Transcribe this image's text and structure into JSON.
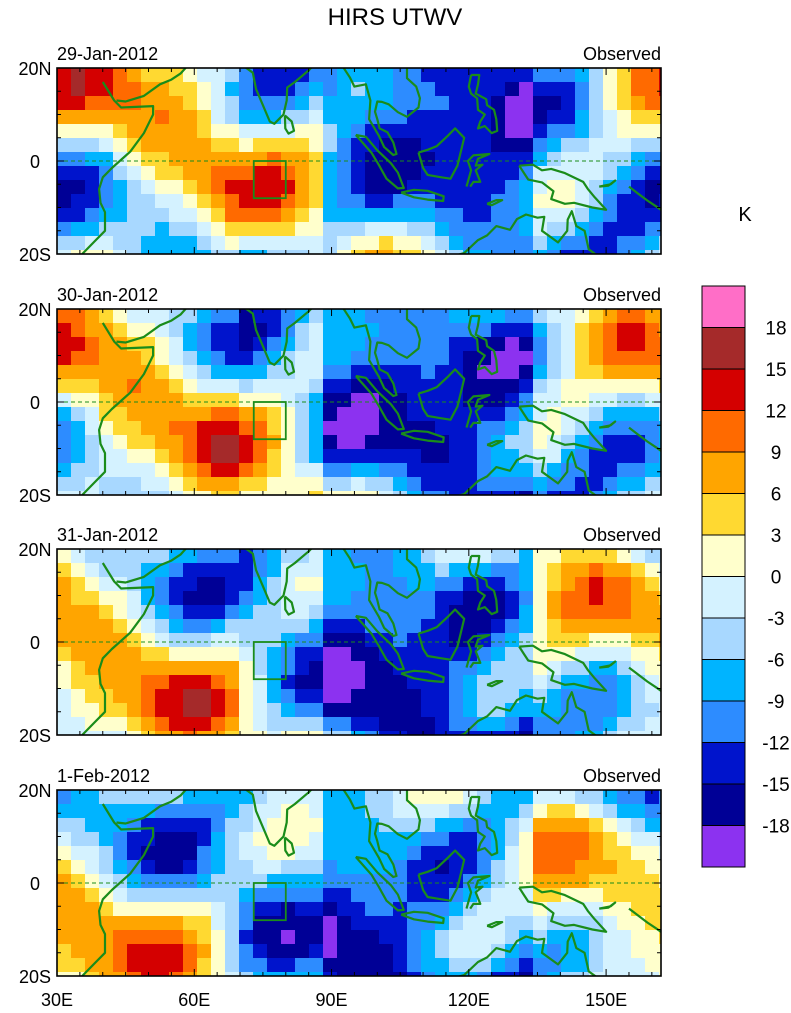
{
  "title": "HIRS UTWV",
  "panels": [
    {
      "date": "29-Jan-2012",
      "label": "Observed"
    },
    {
      "date": "30-Jan-2012",
      "label": "Observed"
    },
    {
      "date": "31-Jan-2012",
      "label": "Observed"
    },
    {
      "date": "1-Feb-2012",
      "label": "Observed"
    }
  ],
  "lat_labels": [
    "20N",
    "0",
    "20S"
  ],
  "lon_labels": [
    "30E",
    "60E",
    "90E",
    "120E",
    "150E"
  ],
  "colorbar": {
    "unit": "K",
    "tick_labels": [
      "18",
      "15",
      "12",
      "9",
      "6",
      "3",
      "0",
      "-3",
      "-6",
      "-9",
      "-12",
      "-15",
      "-18"
    ],
    "colors": [
      "#ff6ec7",
      "#a52a2a",
      "#d40000",
      "#ff6a00",
      "#ffa500",
      "#ffd931",
      "#ffffcc",
      "#d4f2ff",
      "#a8d8ff",
      "#00b4ff",
      "#2d8cff",
      "#0014cc",
      "#000096",
      "#8c32f0"
    ]
  },
  "colors": {
    "coast": "#1a8c1a",
    "box": "#1a8c1a"
  }
}
